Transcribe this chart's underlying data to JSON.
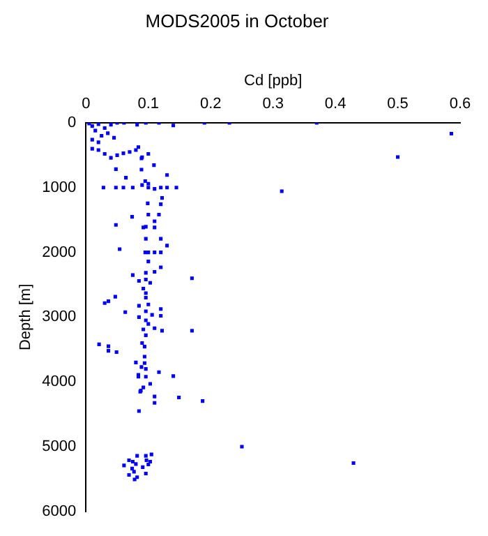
{
  "chart_data": {
    "type": "scatter",
    "title": "MODS2005 in October",
    "xlabel": "Cd [ppb]",
    "ylabel": "Depth [m]",
    "xlim": [
      0,
      0.6
    ],
    "xticks": [
      0,
      0.1,
      0.2,
      0.3,
      0.4,
      0.5,
      0.6
    ],
    "ylim": [
      6000,
      0
    ],
    "yticks": [
      0,
      1000,
      2000,
      3000,
      4000,
      5000,
      6000
    ],
    "grid": false,
    "legend": false,
    "marker": "square",
    "series": [
      {
        "color": "#0000ff",
        "x": [
          0.19,
          0.23,
          0.37,
          0.586,
          0.5,
          0.314,
          0.14,
          0.117,
          0.096,
          0.082,
          0.061,
          0.005,
          0.01,
          0.02,
          0.03,
          0.015,
          0.04,
          0.05,
          0.025,
          0.035,
          0.01,
          0.045,
          0.02,
          0.01,
          0.02,
          0.03,
          0.05,
          0.06,
          0.07,
          0.08,
          0.1,
          0.09,
          0.04,
          0.084,
          0.109,
          0.089,
          0.048,
          0.089,
          0.13,
          0.064,
          0.048,
          0.028,
          0.06,
          0.075,
          0.09,
          0.1,
          0.11,
          0.12,
          0.13,
          0.145,
          0.1,
          0.095,
          0.122,
          0.099,
          0.12,
          0.074,
          0.1,
          0.117,
          0.11,
          0.048,
          0.096,
          0.092,
          0.11,
          0.096,
          0.12,
          0.13,
          0.054,
          0.095,
          0.1,
          0.11,
          0.12,
          0.1,
          0.12,
          0.096,
          0.11,
          0.075,
          0.17,
          0.096,
          0.085,
          0.103,
          0.092,
          0.096,
          0.096,
          0.047,
          0.036,
          0.03,
          0.1,
          0.085,
          0.12,
          0.096,
          0.063,
          0.106,
          0.085,
          0.12,
          0.096,
          0.1,
          0.11,
          0.092,
          0.122,
          0.17,
          0.096,
          0.021,
          0.09,
          0.036,
          0.036,
          0.049,
          0.094,
          0.094,
          0.08,
          0.094,
          0.089,
          0.096,
          0.084,
          0.117,
          0.14,
          0.096,
          0.084,
          0.103,
          0.092,
          0.087,
          0.088,
          0.11,
          0.11,
          0.149,
          0.187,
          0.085,
          0.25,
          0.429,
          0.061,
          0.069,
          0.075,
          0.08,
          0.082,
          0.096,
          0.105,
          0.097,
          0.103,
          0.091,
          0.074,
          0.077,
          0.069,
          0.082,
          0.078,
          0.096,
          0.1
        ],
        "values": [
          0,
          0,
          0,
          167,
          528,
          1056,
          40,
          0,
          0,
          28,
          0,
          10,
          50,
          20,
          80,
          120,
          30,
          0,
          200,
          160,
          260,
          230,
          300,
          400,
          420,
          480,
          500,
          470,
          450,
          420,
          480,
          530,
          540,
          375,
          653,
          549,
          715,
          722,
          806,
          847,
          1000,
          1000,
          1000,
          1000,
          960,
          1000,
          1020,
          1000,
          1000,
          1000,
          940,
          900,
          1160,
          1243,
          1257,
          1451,
          1417,
          1417,
          1520,
          1576,
          1604,
          1615,
          1615,
          1790,
          1790,
          1895,
          1951,
          2000,
          2000,
          2000,
          2000,
          2140,
          2230,
          2315,
          2300,
          2350,
          2400,
          2420,
          2440,
          2470,
          2560,
          2630,
          2700,
          2685,
          2755,
          2783,
          2805,
          2825,
          2875,
          2910,
          2923,
          2965,
          3000,
          2980,
          3050,
          3105,
          3170,
          3190,
          3210,
          3210,
          3280,
          3420,
          3400,
          3450,
          3520,
          3540,
          3455,
          3610,
          3700,
          3710,
          3770,
          3800,
          3890,
          3850,
          3910,
          3920,
          3920,
          4030,
          4085,
          4150,
          4134,
          4225,
          4324,
          4240,
          4296,
          4450,
          5000,
          5254,
          5290,
          5210,
          5232,
          5268,
          5141,
          5141,
          5120,
          5210,
          5232,
          5317,
          5338,
          5387,
          5437,
          5472,
          5507,
          5415,
          5275
        ]
      }
    ]
  }
}
